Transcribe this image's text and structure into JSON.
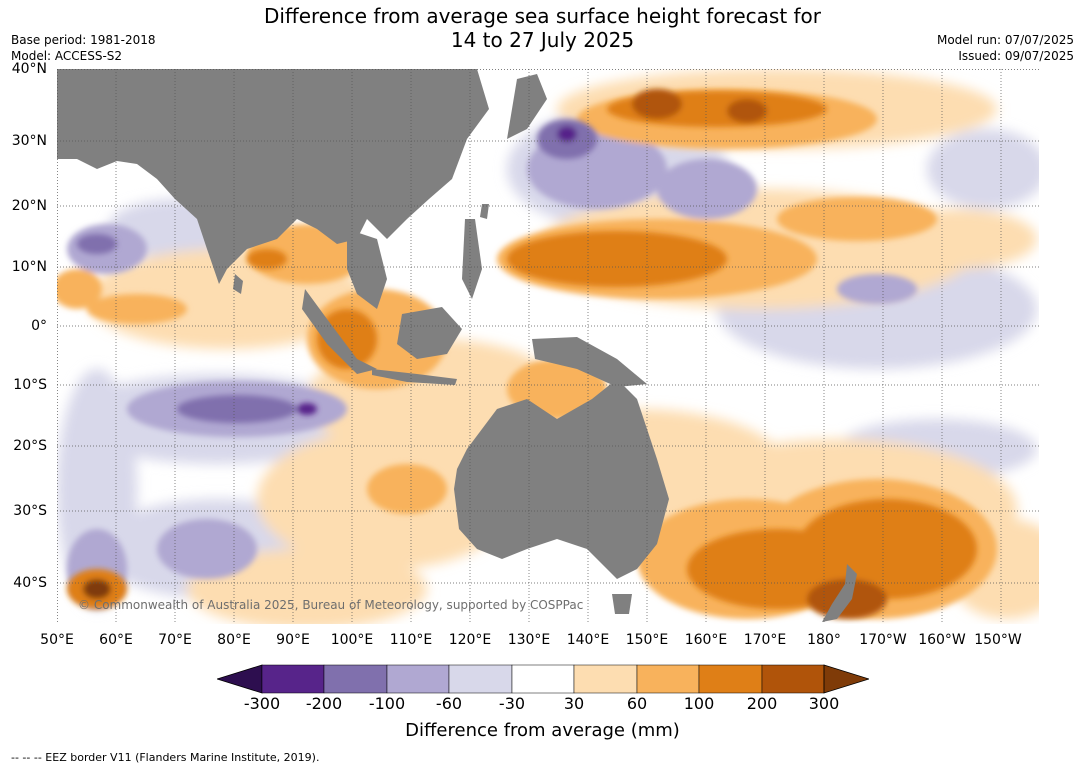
{
  "title_line1": "Difference from average sea surface height forecast for",
  "title_line2": "14 to 27 July 2025",
  "meta": {
    "base_period": "Base period: 1981-2018",
    "model": "Model: ACCESS-S2",
    "model_run": "Model run: 07/07/2025",
    "issued": "Issued: 09/07/2025"
  },
  "map": {
    "copyright": "© Commonwealth of Australia 2025, Bureau of Meteorology, supported by COSPPac",
    "lat_labels": [
      "40°N",
      "30°N",
      "20°N",
      "10°N",
      "0°",
      "10°S",
      "20°S",
      "30°S",
      "40°S"
    ],
    "lon_labels": [
      "50°E",
      "60°E",
      "70°E",
      "80°E",
      "90°E",
      "100°E",
      "110°E",
      "120°E",
      "130°E",
      "140°E",
      "150°E",
      "160°E",
      "170°E",
      "180°",
      "170°W",
      "160°W",
      "150°W"
    ],
    "land_color": "#808080",
    "grid_line_style": "dotted"
  },
  "colorbar": {
    "title": "Difference from average (mm)",
    "tick_labels": [
      "-300",
      "-200",
      "-100",
      "-60",
      "-30",
      "30",
      "60",
      "100",
      "200",
      "300"
    ],
    "colors": [
      "#2d0e4f",
      "#57248a",
      "#8070ad",
      "#b0a8d2",
      "#d8d8ea",
      "#ffffff",
      "#fdddb1",
      "#f8b25c",
      "#df7f17",
      "#b0540a",
      "#7f3b08"
    ]
  },
  "footnote": "--  --  -- EEZ border V11 (Flanders Marine Institute, 2019)."
}
